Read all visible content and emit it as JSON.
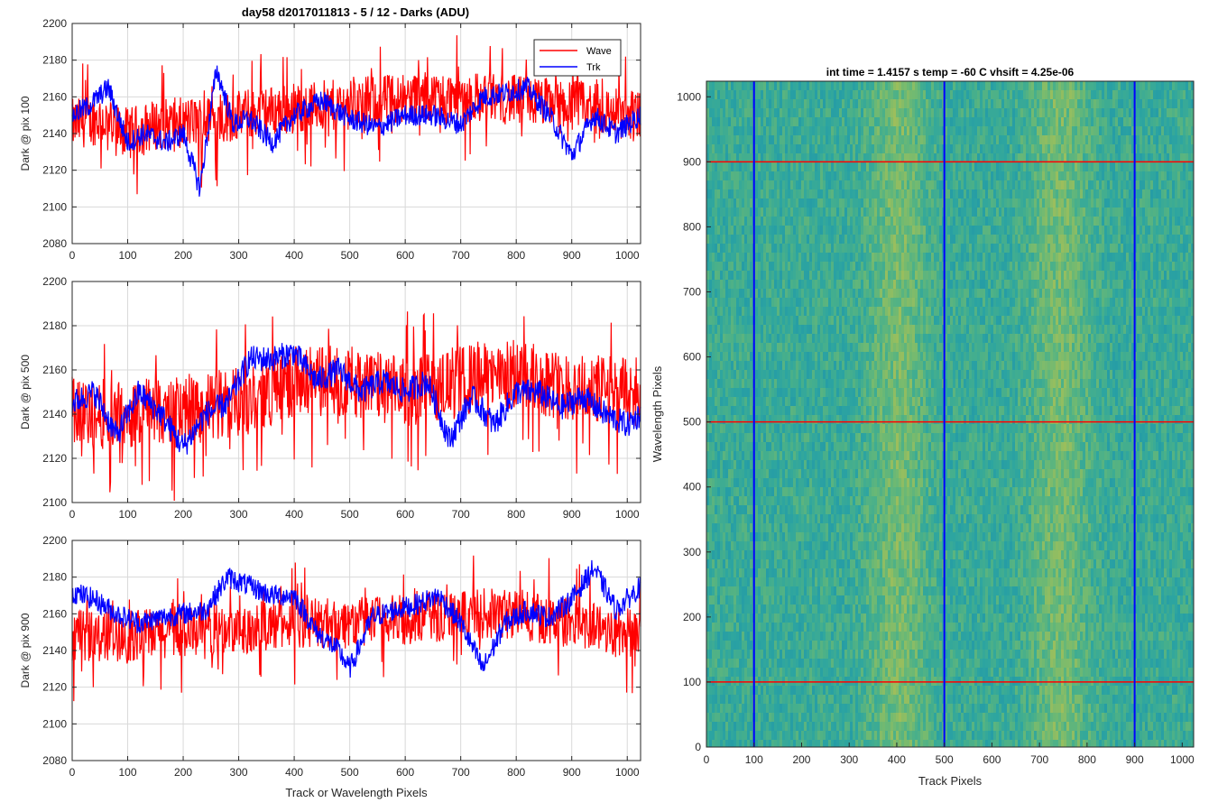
{
  "figure_title": "day58 d2017011813 - 5 / 12 - Darks (ADU)",
  "colors": {
    "wave": "#ff0000",
    "trk": "#0000ff",
    "grid": "#d9d9d9",
    "axis": "#262626"
  },
  "chart_data": [
    {
      "type": "line",
      "ylabel": "Dark @ pix 100",
      "xlim": [
        0,
        1024
      ],
      "ylim": [
        2080,
        2200
      ],
      "xticks": [
        0,
        100,
        200,
        300,
        400,
        500,
        600,
        700,
        800,
        900,
        1000
      ],
      "yticks": [
        2080,
        2100,
        2120,
        2140,
        2160,
        2180,
        2200
      ],
      "grid": true,
      "legend": {
        "position": "top-right",
        "entries": [
          "Wave",
          "Trk"
        ]
      },
      "series": [
        {
          "name": "Wave",
          "color": "#ff0000",
          "x": [
            0,
            50,
            100,
            150,
            200,
            250,
            300,
            350,
            400,
            450,
            500,
            550,
            600,
            650,
            700,
            750,
            800,
            850,
            900,
            950,
            1000,
            1024
          ],
          "y": [
            2145,
            2148,
            2140,
            2145,
            2146,
            2147,
            2150,
            2152,
            2154,
            2155,
            2156,
            2158,
            2160,
            2160,
            2160,
            2160,
            2158,
            2157,
            2156,
            2153,
            2150,
            2152
          ],
          "spread": 14
        },
        {
          "name": "Trk",
          "color": "#0000ff",
          "x": [
            0,
            30,
            65,
            100,
            130,
            170,
            200,
            230,
            260,
            290,
            320,
            360,
            400,
            450,
            500,
            550,
            600,
            650,
            700,
            740,
            780,
            820,
            860,
            900,
            940,
            980,
            1024
          ],
          "y": [
            2150,
            2155,
            2165,
            2135,
            2140,
            2135,
            2140,
            2110,
            2175,
            2145,
            2148,
            2135,
            2150,
            2158,
            2148,
            2143,
            2150,
            2150,
            2145,
            2160,
            2162,
            2165,
            2150,
            2128,
            2150,
            2140,
            2150
          ],
          "spread": 6
        }
      ]
    },
    {
      "type": "line",
      "ylabel": "Dark @ pix 500",
      "xlim": [
        0,
        1024
      ],
      "ylim": [
        2100,
        2200
      ],
      "xticks": [
        0,
        100,
        200,
        300,
        400,
        500,
        600,
        700,
        800,
        900,
        1000
      ],
      "yticks": [
        2100,
        2120,
        2140,
        2160,
        2180,
        2200
      ],
      "grid": true,
      "series": [
        {
          "name": "Wave",
          "color": "#ff0000",
          "x": [
            0,
            100,
            200,
            300,
            400,
            500,
            600,
            700,
            800,
            900,
            1000,
            1024
          ],
          "y": [
            2140,
            2140,
            2142,
            2145,
            2155,
            2155,
            2150,
            2155,
            2158,
            2152,
            2150,
            2150
          ],
          "spread": 16
        },
        {
          "name": "Trk",
          "color": "#0000ff",
          "x": [
            0,
            40,
            80,
            120,
            160,
            200,
            240,
            280,
            320,
            360,
            400,
            440,
            480,
            520,
            560,
            600,
            640,
            680,
            720,
            760,
            800,
            840,
            880,
            920,
            960,
            1000,
            1024
          ],
          "y": [
            2145,
            2150,
            2130,
            2150,
            2140,
            2125,
            2140,
            2145,
            2165,
            2165,
            2168,
            2155,
            2160,
            2150,
            2155,
            2150,
            2155,
            2128,
            2148,
            2135,
            2150,
            2150,
            2143,
            2148,
            2140,
            2135,
            2140
          ],
          "spread": 6
        }
      ]
    },
    {
      "type": "line",
      "ylabel": "Dark @ pix 900",
      "xlabel": "Track or Wavelength Pixels",
      "xlim": [
        0,
        1024
      ],
      "ylim": [
        2080,
        2200
      ],
      "xticks": [
        0,
        100,
        200,
        300,
        400,
        500,
        600,
        700,
        800,
        900,
        1000
      ],
      "yticks": [
        2080,
        2100,
        2120,
        2140,
        2160,
        2180,
        2200
      ],
      "grid": true,
      "series": [
        {
          "name": "Wave",
          "color": "#ff0000",
          "x": [
            0,
            100,
            200,
            300,
            400,
            500,
            600,
            700,
            800,
            900,
            1000,
            1024
          ],
          "y": [
            2148,
            2148,
            2150,
            2152,
            2155,
            2155,
            2157,
            2160,
            2160,
            2155,
            2150,
            2150
          ],
          "spread": 14
        },
        {
          "name": "Trk",
          "color": "#0000ff",
          "x": [
            0,
            40,
            80,
            120,
            160,
            200,
            240,
            280,
            320,
            360,
            400,
            440,
            480,
            500,
            540,
            580,
            620,
            660,
            700,
            740,
            780,
            820,
            860,
            900,
            940,
            980,
            1024
          ],
          "y": [
            2172,
            2168,
            2160,
            2155,
            2158,
            2160,
            2162,
            2180,
            2175,
            2170,
            2170,
            2150,
            2140,
            2130,
            2158,
            2162,
            2165,
            2170,
            2155,
            2130,
            2155,
            2162,
            2158,
            2168,
            2185,
            2162,
            2175
          ],
          "spread": 6
        }
      ]
    },
    {
      "type": "heatmap",
      "title": "int time = 1.4157 s    temp = -60 C    vhsift = 4.25e-06",
      "xlabel": "Track Pixels",
      "ylabel": "Wavelength Pixels",
      "xlim": [
        0,
        1024
      ],
      "ylim": [
        0,
        1024
      ],
      "xticks": [
        0,
        100,
        200,
        300,
        400,
        500,
        600,
        700,
        800,
        900,
        1000
      ],
      "yticks": [
        0,
        100,
        200,
        300,
        400,
        500,
        600,
        700,
        800,
        900,
        1000
      ],
      "colormap": "parula",
      "brighter_bands_x": [
        [
          340,
          460
        ],
        [
          680,
          800
        ]
      ],
      "vertical_lines": {
        "x": [
          100,
          500,
          900
        ],
        "color": "#0000ff"
      },
      "horizontal_lines": {
        "y": [
          100,
          500,
          900
        ],
        "color": "#ff0000"
      }
    }
  ]
}
